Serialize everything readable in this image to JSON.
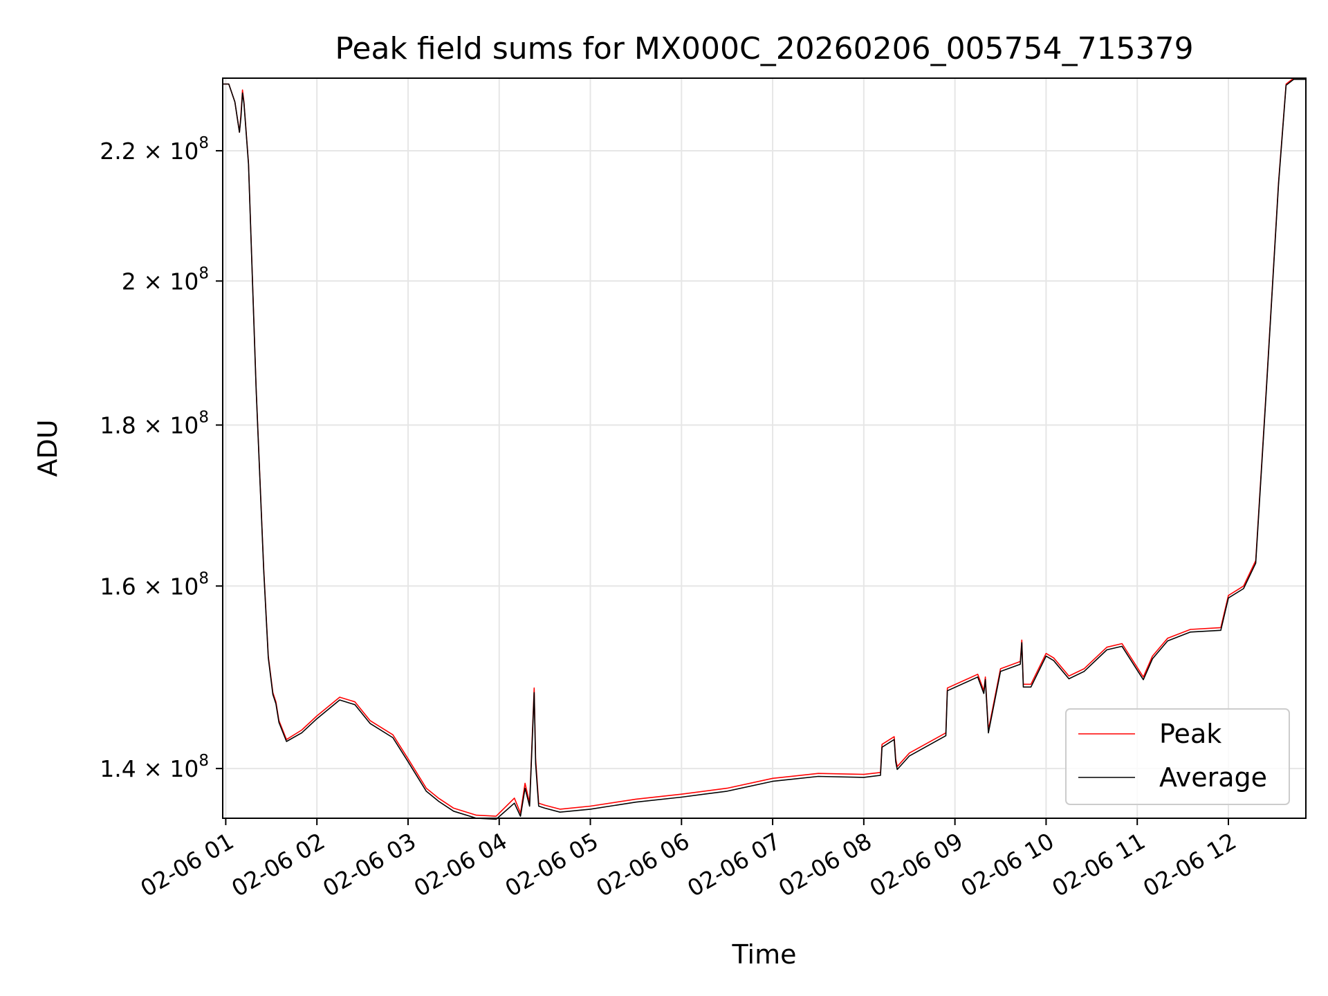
{
  "chart_data": {
    "type": "line",
    "title": "Peak field sums for MX000C_20260206_005754_715379",
    "xlabel": "Time",
    "ylabel": "ADU",
    "grid": true,
    "legend_position": "lower-right",
    "xlim": [
      "2026-02-06 00:58",
      "2026-02-06 12:51"
    ],
    "ylim": [
      135000000,
      232000000
    ],
    "x_ticks": [
      "2026-02-06 01:00",
      "2026-02-06 02:00",
      "2026-02-06 03:00",
      "2026-02-06 04:00",
      "2026-02-06 05:00",
      "2026-02-06 06:00",
      "2026-02-06 07:00",
      "2026-02-06 08:00",
      "2026-02-06 09:00",
      "2026-02-06 10:00",
      "2026-02-06 11:00",
      "2026-02-06 12:00"
    ],
    "x_tick_labels": [
      "02-06 01",
      "02-06 02",
      "02-06 03",
      "02-06 04",
      "02-06 05",
      "02-06 06",
      "02-06 07",
      "02-06 08",
      "02-06 09",
      "02-06 10",
      "02-06 11",
      "02-06 12"
    ],
    "y_ticks": [
      140000000,
      160000000,
      180000000,
      200000000,
      220000000
    ],
    "y_tick_labels": [
      {
        "mantissa": "1.4",
        "exp": "8"
      },
      {
        "mantissa": "1.6",
        "exp": "8"
      },
      {
        "mantissa": "1.8",
        "exp": "8"
      },
      {
        "mantissa": "2",
        "exp": "8"
      },
      {
        "mantissa": "2.2",
        "exp": "8"
      }
    ],
    "series": [
      {
        "name": "Peak",
        "color": "#ff0000",
        "x": [
          "2026-02-06 00:58",
          "2026-02-06 01:02",
          "2026-02-06 01:06",
          "2026-02-06 01:09",
          "2026-02-06 01:10",
          "2026-02-06 01:11",
          "2026-02-06 01:12",
          "2026-02-06 01:15",
          "2026-02-06 01:20",
          "2026-02-06 01:25",
          "2026-02-06 01:28",
          "2026-02-06 01:31",
          "2026-02-06 01:33",
          "2026-02-06 01:35",
          "2026-02-06 01:40",
          "2026-02-06 01:50",
          "2026-02-06 02:00",
          "2026-02-06 02:15",
          "2026-02-06 02:25",
          "2026-02-06 02:35",
          "2026-02-06 02:50",
          "2026-02-06 03:00",
          "2026-02-06 03:12",
          "2026-02-06 03:20",
          "2026-02-06 03:30",
          "2026-02-06 03:45",
          "2026-02-06 03:58",
          "2026-02-06 04:10",
          "2026-02-06 04:14",
          "2026-02-06 04:17",
          "2026-02-06 04:20",
          "2026-02-06 04:23",
          "2026-02-06 04:24",
          "2026-02-06 04:26",
          "2026-02-06 04:30",
          "2026-02-06 04:40",
          "2026-02-06 05:00",
          "2026-02-06 05:30",
          "2026-02-06 06:00",
          "2026-02-06 06:30",
          "2026-02-06 07:00",
          "2026-02-06 07:30",
          "2026-02-06 08:00",
          "2026-02-06 08:11",
          "2026-02-06 08:12",
          "2026-02-06 08:20",
          "2026-02-06 08:21",
          "2026-02-06 08:22",
          "2026-02-06 08:30",
          "2026-02-06 08:54",
          "2026-02-06 08:55",
          "2026-02-06 09:15",
          "2026-02-06 09:19",
          "2026-02-06 09:20",
          "2026-02-06 09:22",
          "2026-02-06 09:30",
          "2026-02-06 09:43",
          "2026-02-06 09:44",
          "2026-02-06 09:45",
          "2026-02-06 09:50",
          "2026-02-06 10:00",
          "2026-02-06 10:05",
          "2026-02-06 10:15",
          "2026-02-06 10:25",
          "2026-02-06 10:40",
          "2026-02-06 10:50",
          "2026-02-06 11:04",
          "2026-02-06 11:10",
          "2026-02-06 11:20",
          "2026-02-06 11:35",
          "2026-02-06 11:55",
          "2026-02-06 12:00",
          "2026-02-06 12:10",
          "2026-02-06 12:18",
          "2026-02-06 12:25",
          "2026-02-06 12:33",
          "2026-02-06 12:38",
          "2026-02-06 12:43",
          "2026-02-06 12:51"
        ],
        "y": [
          231000000,
          231000000,
          228000000,
          223000000,
          226000000,
          230000000,
          228000000,
          218000000,
          185000000,
          162000000,
          152000000,
          148000000,
          147000000,
          145000000,
          143000000,
          144000000,
          145500000,
          147500000,
          147000000,
          145000000,
          143500000,
          141000000,
          138000000,
          137000000,
          136000000,
          135300000,
          135200000,
          137000000,
          135500000,
          138500000,
          136500000,
          148500000,
          141000000,
          136500000,
          136300000,
          135900000,
          136200000,
          136900000,
          137400000,
          138000000,
          139000000,
          139500000,
          139400000,
          139600000,
          142500000,
          143300000,
          141000000,
          140200000,
          141600000,
          143700000,
          148500000,
          150000000,
          148200000,
          149700000,
          144000000,
          150600000,
          151400000,
          153800000,
          148900000,
          148900000,
          152300000,
          151800000,
          149800000,
          150600000,
          153000000,
          153400000,
          149700000,
          152000000,
          154000000,
          155000000,
          155200000,
          158900000,
          160000000,
          163000000,
          185000000,
          215000000,
          231000000,
          232000000,
          232000000
        ]
      },
      {
        "name": "Average",
        "color": "#000000",
        "x": [
          "2026-02-06 00:58",
          "2026-02-06 01:02",
          "2026-02-06 01:06",
          "2026-02-06 01:09",
          "2026-02-06 01:10",
          "2026-02-06 01:11",
          "2026-02-06 01:12",
          "2026-02-06 01:15",
          "2026-02-06 01:20",
          "2026-02-06 01:25",
          "2026-02-06 01:28",
          "2026-02-06 01:31",
          "2026-02-06 01:33",
          "2026-02-06 01:35",
          "2026-02-06 01:40",
          "2026-02-06 01:50",
          "2026-02-06 02:00",
          "2026-02-06 02:15",
          "2026-02-06 02:25",
          "2026-02-06 02:35",
          "2026-02-06 02:50",
          "2026-02-06 03:00",
          "2026-02-06 03:12",
          "2026-02-06 03:20",
          "2026-02-06 03:30",
          "2026-02-06 03:45",
          "2026-02-06 03:58",
          "2026-02-06 04:10",
          "2026-02-06 04:14",
          "2026-02-06 04:17",
          "2026-02-06 04:20",
          "2026-02-06 04:23",
          "2026-02-06 04:24",
          "2026-02-06 04:26",
          "2026-02-06 04:30",
          "2026-02-06 04:40",
          "2026-02-06 05:00",
          "2026-02-06 05:30",
          "2026-02-06 06:00",
          "2026-02-06 06:30",
          "2026-02-06 07:00",
          "2026-02-06 07:30",
          "2026-02-06 08:00",
          "2026-02-06 08:11",
          "2026-02-06 08:12",
          "2026-02-06 08:20",
          "2026-02-06 08:21",
          "2026-02-06 08:22",
          "2026-02-06 08:30",
          "2026-02-06 08:54",
          "2026-02-06 08:55",
          "2026-02-06 09:15",
          "2026-02-06 09:19",
          "2026-02-06 09:20",
          "2026-02-06 09:22",
          "2026-02-06 09:30",
          "2026-02-06 09:43",
          "2026-02-06 09:44",
          "2026-02-06 09:45",
          "2026-02-06 09:50",
          "2026-02-06 10:00",
          "2026-02-06 10:05",
          "2026-02-06 10:15",
          "2026-02-06 10:25",
          "2026-02-06 10:40",
          "2026-02-06 10:50",
          "2026-02-06 11:04",
          "2026-02-06 11:10",
          "2026-02-06 11:20",
          "2026-02-06 11:35",
          "2026-02-06 11:55",
          "2026-02-06 12:00",
          "2026-02-06 12:10",
          "2026-02-06 12:18",
          "2026-02-06 12:25",
          "2026-02-06 12:33",
          "2026-02-06 12:38",
          "2026-02-06 12:43",
          "2026-02-06 12:51"
        ],
        "y": [
          231000000,
          231000000,
          228000000,
          223000000,
          225500000,
          229500000,
          227800000,
          217800000,
          184800000,
          161800000,
          151800000,
          147800000,
          146800000,
          144800000,
          142800000,
          143700000,
          145200000,
          147200000,
          146700000,
          144700000,
          143200000,
          140700000,
          137700000,
          136700000,
          135700000,
          135000000,
          134900000,
          136500000,
          135200000,
          138000000,
          136200000,
          148000000,
          140500000,
          136200000,
          136000000,
          135600000,
          135900000,
          136600000,
          137100000,
          137700000,
          138700000,
          139200000,
          139100000,
          139300000,
          142200000,
          143000000,
          140700000,
          139900000,
          141300000,
          143400000,
          148200000,
          149700000,
          147900000,
          149400000,
          143700000,
          150300000,
          151100000,
          153500000,
          148600000,
          148600000,
          152000000,
          151500000,
          149500000,
          150300000,
          152700000,
          153100000,
          149400000,
          151700000,
          153700000,
          154700000,
          154900000,
          158600000,
          159700000,
          162700000,
          184700000,
          214700000,
          230800000,
          231800000,
          231800000
        ]
      }
    ]
  }
}
